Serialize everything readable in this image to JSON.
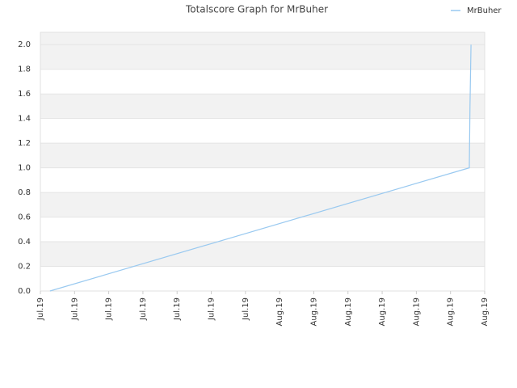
{
  "chart_data": {
    "type": "line",
    "title": "Totalscore Graph for MrBuher",
    "x": [
      0.28,
      12.55,
      12.57,
      12.6
    ],
    "series": [
      {
        "name": "MrBuher",
        "color": "#99c9f0",
        "values": [
          0,
          1.0,
          1.5,
          2.0
        ]
      }
    ],
    "xlim": [
      0,
      13
    ],
    "xticks": [
      {
        "value": 0,
        "label": "Jul.19"
      },
      {
        "value": 1,
        "label": "Jul.19"
      },
      {
        "value": 2,
        "label": "Jul.19"
      },
      {
        "value": 3,
        "label": "Jul.19"
      },
      {
        "value": 4,
        "label": "Jul.19"
      },
      {
        "value": 5,
        "label": "Jul.19"
      },
      {
        "value": 6,
        "label": "Jul.19"
      },
      {
        "value": 7,
        "label": "Aug.19"
      },
      {
        "value": 8,
        "label": "Aug.19"
      },
      {
        "value": 9,
        "label": "Aug.19"
      },
      {
        "value": 10,
        "label": "Aug.19"
      },
      {
        "value": 11,
        "label": "Aug.19"
      },
      {
        "value": 12,
        "label": "Aug.19"
      },
      {
        "value": 13,
        "label": "Aug.19"
      }
    ],
    "ylim": [
      0,
      2.1
    ],
    "yticks": [
      {
        "value": 0,
        "label": "0.0"
      },
      {
        "value": 0.2,
        "label": "0.2"
      },
      {
        "value": 0.4,
        "label": "0.4"
      },
      {
        "value": 0.6,
        "label": "0.6"
      },
      {
        "value": 0.8,
        "label": "0.8"
      },
      {
        "value": 1.0,
        "label": "1.0"
      },
      {
        "value": 1.2,
        "label": "1.2"
      },
      {
        "value": 1.4,
        "label": "1.4"
      },
      {
        "value": 1.6,
        "label": "1.6"
      },
      {
        "value": 1.8,
        "label": "1.8"
      },
      {
        "value": 2.0,
        "label": "2.0"
      }
    ],
    "grid": true,
    "legend": "top-right"
  }
}
